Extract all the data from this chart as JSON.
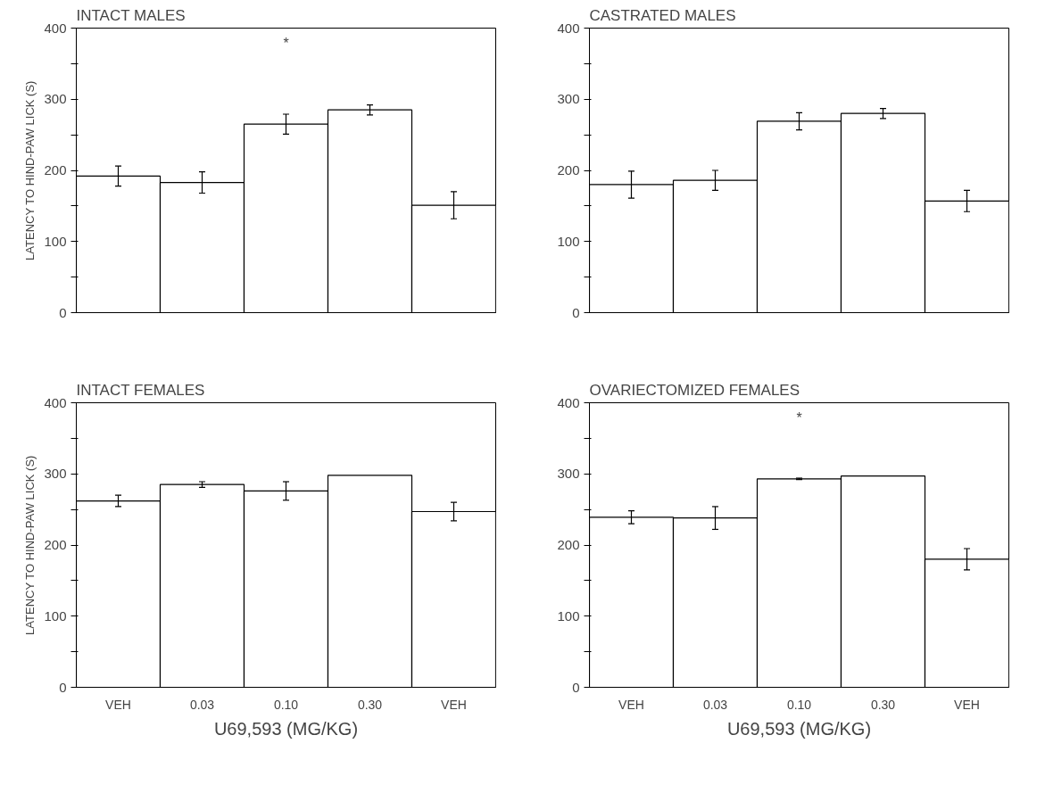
{
  "chart_data": [
    {
      "type": "bar",
      "title": "INTACT MALES",
      "ylabel": "LATENCY TO HIND-PAW LICK (S)",
      "categories": [
        null,
        null,
        null,
        null,
        null
      ],
      "values": [
        192,
        183,
        265,
        285,
        151
      ],
      "errors": [
        14,
        15,
        14,
        7,
        19
      ],
      "colors": [
        "#ffffff",
        "#ffffff",
        "#ffffff",
        "#ffffff",
        "#ffffff"
      ],
      "ylim": [
        0,
        400
      ],
      "yticks": [
        0,
        {
          "value": 50,
          "label": null
        },
        100,
        {
          "value": 150,
          "label": null
        },
        200,
        {
          "value": 250,
          "label": null
        },
        300,
        {
          "value": 350,
          "label": null
        },
        400
      ],
      "annotations": [
        "*"
      ]
    },
    {
      "type": "bar",
      "title": "CASTRATED MALES",
      "categories": [
        null,
        null,
        null,
        null,
        null
      ],
      "values": [
        180,
        186,
        269,
        280,
        157
      ],
      "errors": [
        19,
        14,
        12,
        7,
        15
      ],
      "colors": [
        "#ffffff",
        "#ffffff",
        "#ffffff",
        "#ffffff",
        "#ffffff"
      ],
      "ylim": [
        0,
        400
      ],
      "yticks": [
        0,
        {
          "value": 50,
          "label": null
        },
        100,
        {
          "value": 150,
          "label": null
        },
        200,
        {
          "value": 250,
          "label": null
        },
        300,
        {
          "value": 350,
          "label": null
        },
        400
      ]
    },
    {
      "type": "bar",
      "title": "INTACT FEMALES",
      "ylabel": "LATENCY TO HIND-PAW LICK (S)",
      "xlabel": "U69,593 (MG/KG)",
      "categories": [
        "VEH",
        "0.03",
        "0.10",
        "0.30",
        "VEH"
      ],
      "values": [
        262,
        285,
        276,
        298,
        247
      ],
      "errors": [
        8,
        4,
        13,
        null,
        13
      ],
      "colors": [
        "#ffffff",
        "#ffffff",
        "#ffffff",
        "#ffffff",
        "#ffffff"
      ],
      "ylim": [
        0,
        400
      ],
      "yticks": [
        0,
        {
          "value": 50,
          "label": null
        },
        100,
        {
          "value": 150,
          "label": null
        },
        200,
        {
          "value": 250,
          "label": null
        },
        300,
        {
          "value": 350,
          "label": null
        },
        400
      ]
    },
    {
      "type": "bar",
      "title": "OVARIECTOMIZED FEMALES",
      "xlabel": "U69,593 (MG/KG)",
      "categories": [
        "VEH",
        "0.03",
        "0.10",
        "0.30",
        "VEH"
      ],
      "values": [
        239,
        238,
        293,
        297,
        180
      ],
      "errors": [
        9,
        16,
        1,
        null,
        15
      ],
      "colors": [
        "#ffffff",
        "#ffffff",
        "#ffffff",
        "#ffffff",
        "#ffffff"
      ],
      "ylim": [
        0,
        400
      ],
      "yticks": [
        0,
        {
          "value": 50,
          "label": null
        },
        100,
        {
          "value": 150,
          "label": null
        },
        200,
        {
          "value": 250,
          "label": null
        },
        300,
        {
          "value": 350,
          "label": null
        },
        400
      ],
      "annotations": [
        "*"
      ]
    }
  ]
}
